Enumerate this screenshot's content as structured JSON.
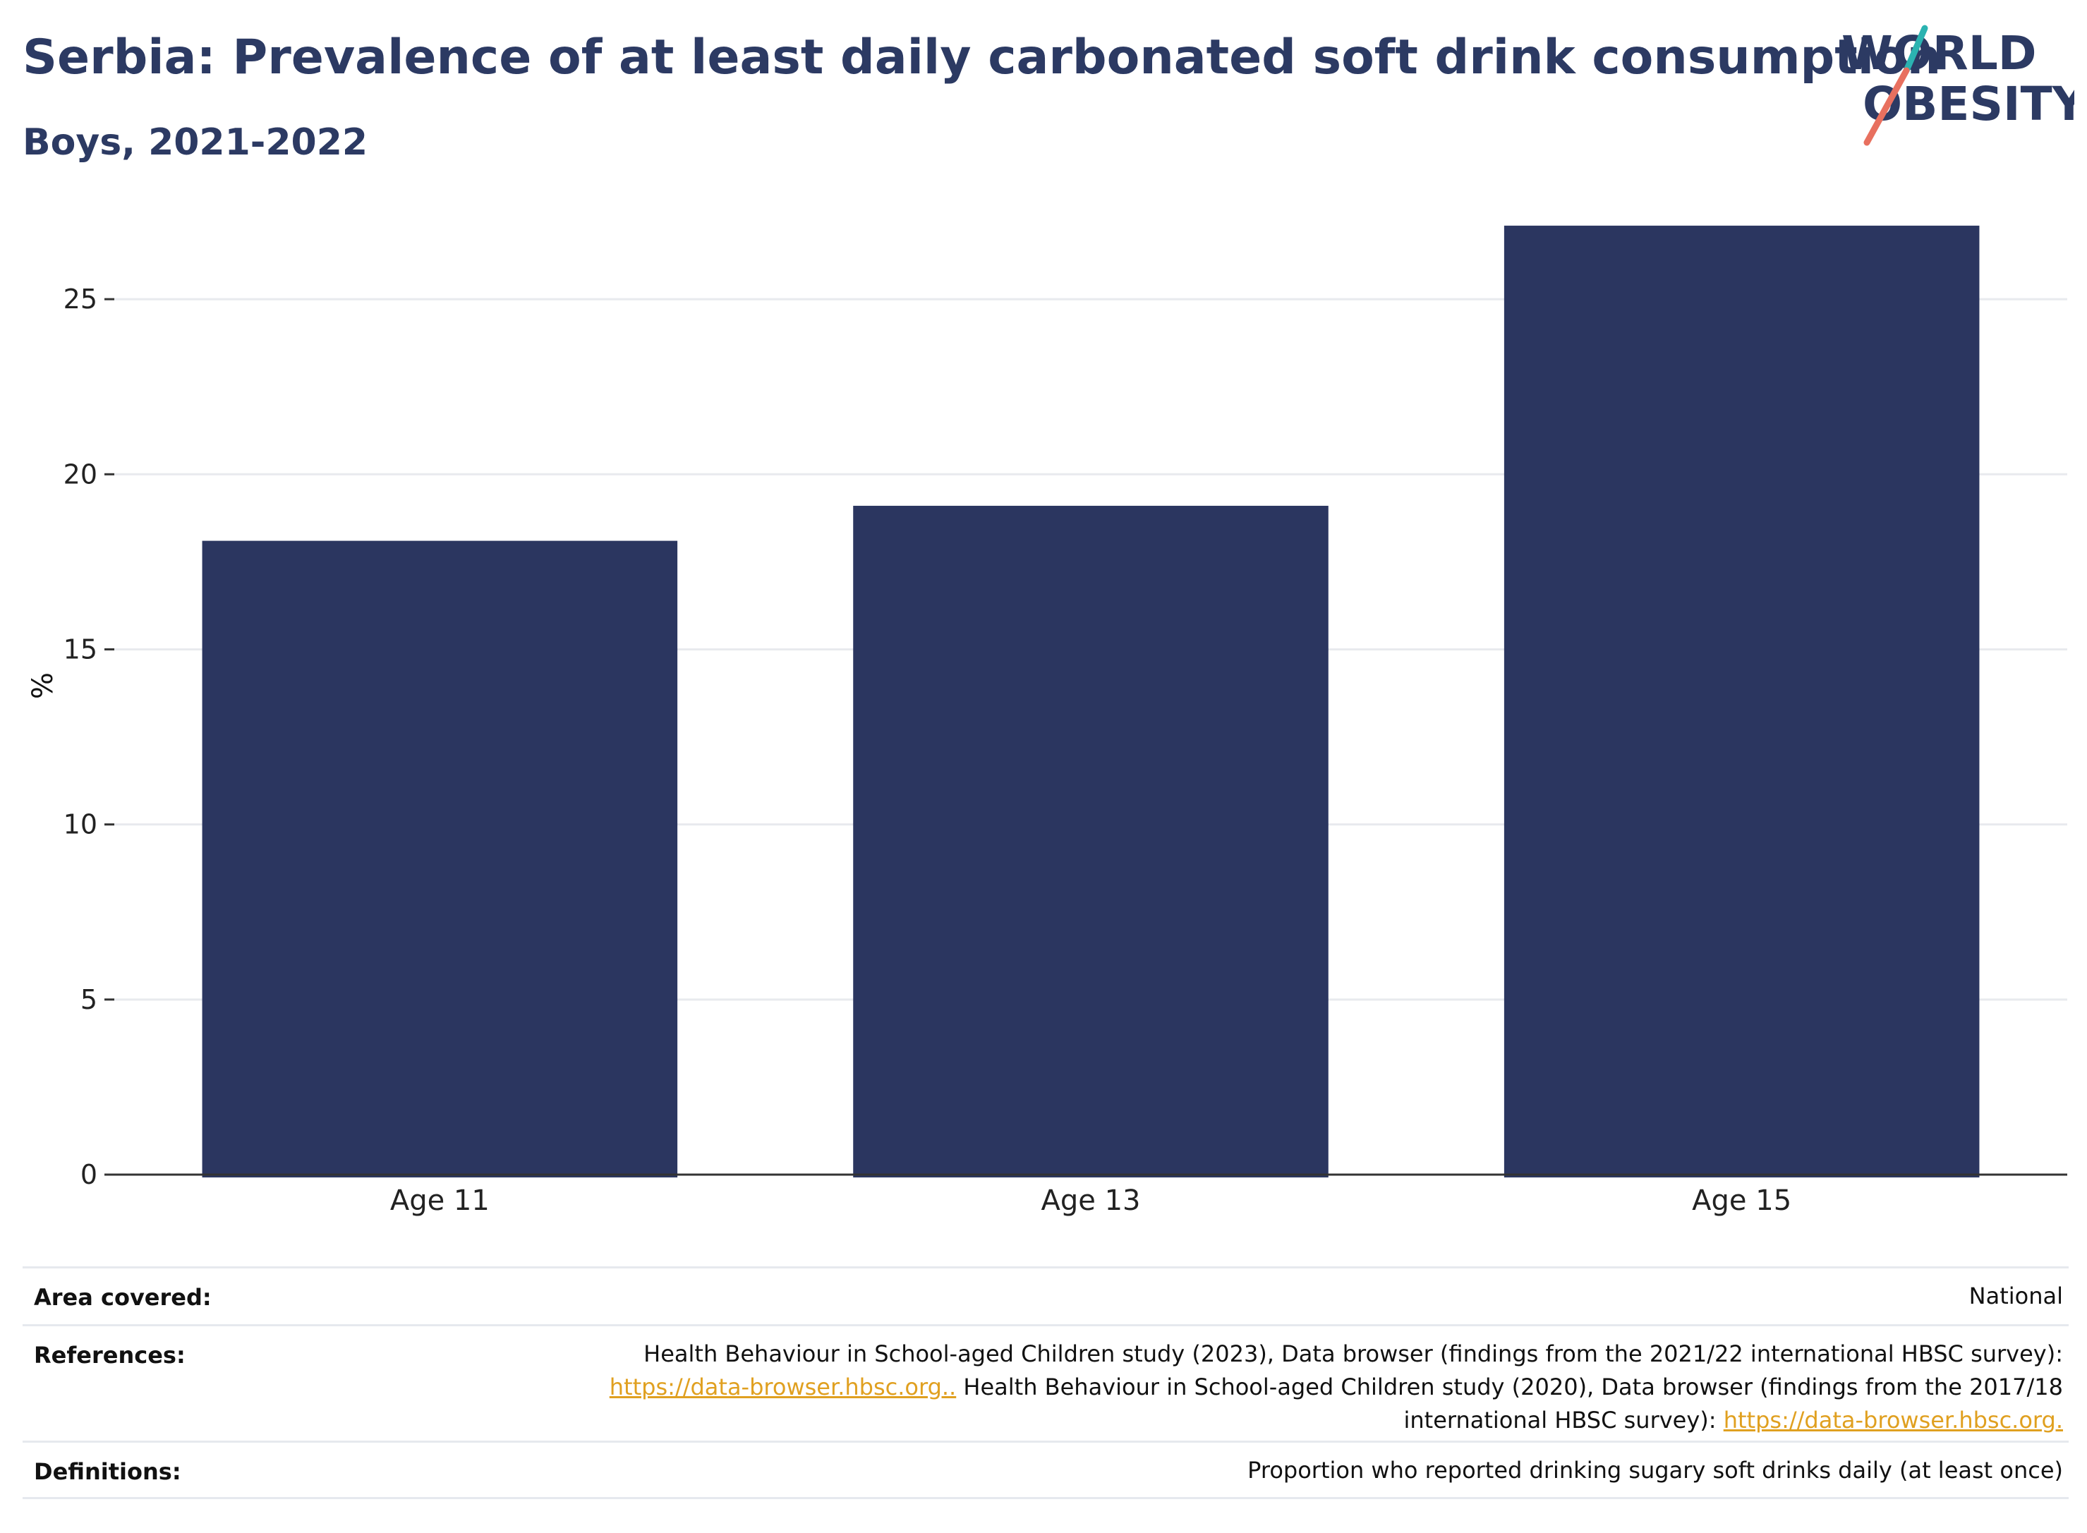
{
  "header": {
    "title": "Serbia: Prevalence of at least daily carbonated soft drink consumption",
    "subtitle": "Boys, 2021-2022"
  },
  "logo": {
    "line1": "WORLD",
    "line2": "OBESITY",
    "accent_teal": "#2bb3b1",
    "accent_coral": "#e8705f"
  },
  "chart_data": {
    "type": "bar",
    "categories": [
      "Age 11",
      "Age 13",
      "Age 15"
    ],
    "values": [
      18.1,
      19.1,
      27.1
    ],
    "ylabel": "%",
    "ylim": [
      0,
      27.5
    ],
    "yticks": [
      0,
      5,
      10,
      15,
      20,
      25
    ],
    "grid": true,
    "bar_color": "#2b3660"
  },
  "meta": {
    "area_label": "Area covered:",
    "area_value": "National",
    "references_label": "References:",
    "references_line1": "Health Behaviour in School-aged Children study (2023), Data browser (findings from the 2021/22 international HBSC survey):",
    "references_link1": "https://data-browser.hbsc.org..",
    "references_line2_rest": " Health Behaviour in School-aged Children study (2020), Data browser (findings from the 2017/18",
    "references_line3": "international HBSC survey): ",
    "references_link2": "https://data-browser.hbsc.org.",
    "definitions_label": "Definitions:",
    "definitions_value": "Proportion who reported drinking sugary soft drinks daily (at least once)"
  }
}
